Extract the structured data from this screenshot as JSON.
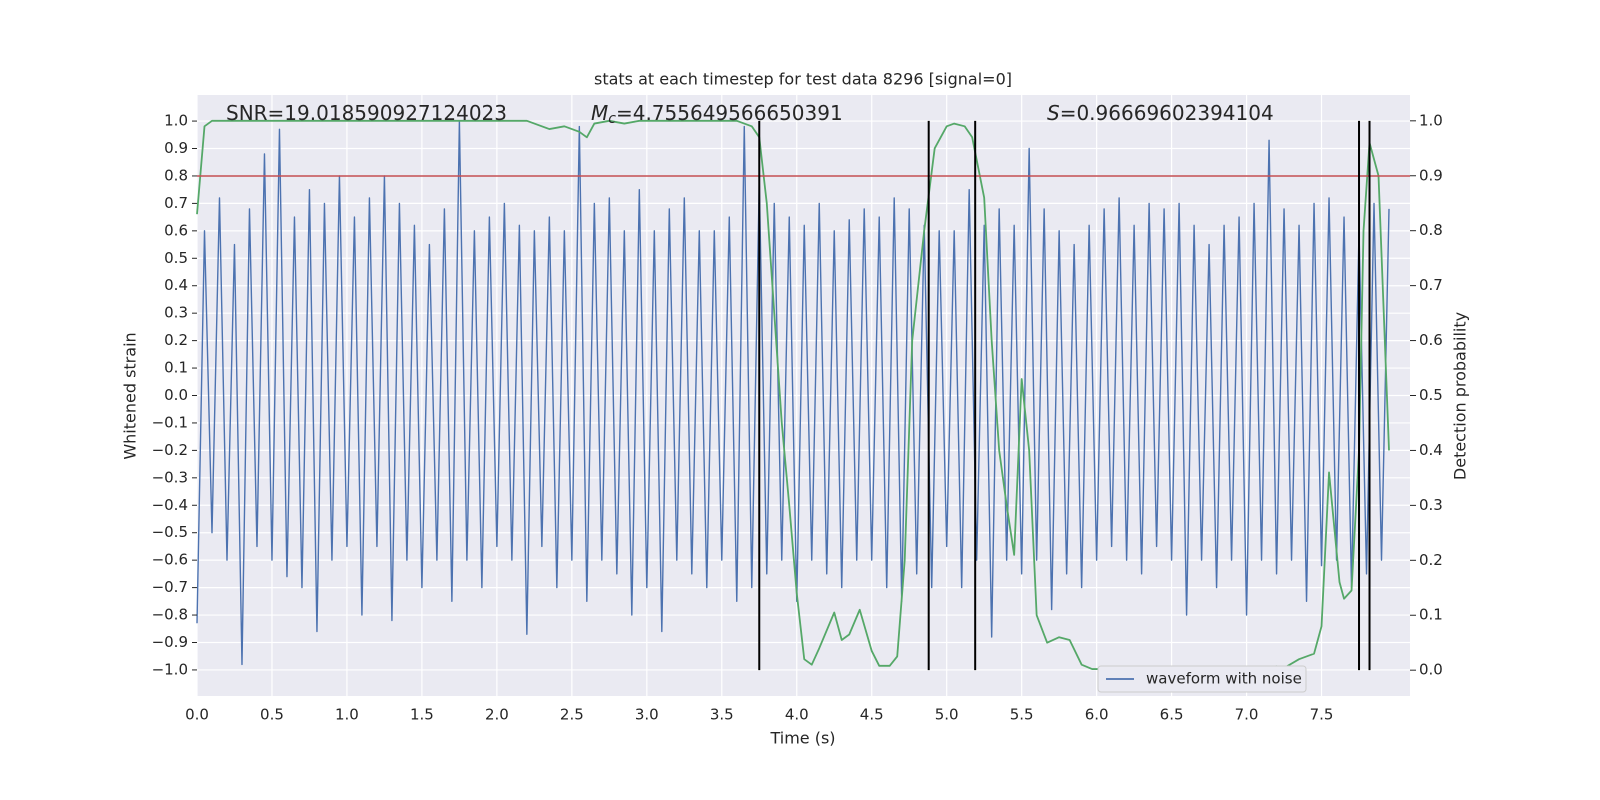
{
  "chart_data": {
    "type": "line",
    "title": "stats at each timestep for test data 8296 [signal=0]",
    "xlabel": "Time (s)",
    "ylabel": "Whitened strain",
    "y2label": "Detection probability",
    "annotations": [
      {
        "text": "SNR=19.018590927124023"
      },
      {
        "symbol": "M",
        "subscript": "c",
        "text": "=4.755649566650391"
      },
      {
        "symbol": "S",
        "text": "=0.96669602394104"
      }
    ],
    "xlim": [
      0,
      8.09
    ],
    "ylim": [
      -1.095,
      1.095
    ],
    "y2lim": [
      -0.047,
      1.047
    ],
    "xticks": [
      {
        "value": 0,
        "label": "0.0"
      },
      0.5,
      {
        "value": 1,
        "label": "1.0"
      },
      1.5,
      {
        "value": 2,
        "label": "2.0"
      },
      2.5,
      {
        "value": 3,
        "label": "3.0"
      },
      3.5,
      {
        "value": 4,
        "label": "4.0"
      },
      4.5,
      {
        "value": 5,
        "label": "5.0"
      },
      5.5,
      {
        "value": 6,
        "label": "6.0"
      },
      6.5,
      {
        "value": 7,
        "label": "7.0"
      },
      7.5
    ],
    "yticks": [
      {
        "value": -1,
        "label": "−1.0"
      },
      {
        "value": -0.9,
        "label": "−0.9"
      },
      {
        "value": -0.8,
        "label": "−0.8"
      },
      {
        "value": -0.7,
        "label": "−0.7"
      },
      {
        "value": -0.6,
        "label": "−0.6"
      },
      {
        "value": -0.5,
        "label": "−0.5"
      },
      {
        "value": -0.4,
        "label": "−0.4"
      },
      {
        "value": -0.3,
        "label": "−0.3"
      },
      {
        "value": -0.2,
        "label": "−0.2"
      },
      {
        "value": -0.1,
        "label": "−0.1"
      },
      {
        "value": 0,
        "label": "0.0"
      },
      0.1,
      0.2,
      0.3,
      0.4,
      0.5,
      0.6,
      0.7,
      0.8,
      0.9,
      {
        "value": 1,
        "label": "1.0"
      }
    ],
    "y2ticks": [
      {
        "value": 0,
        "label": "0.0"
      },
      0.1,
      0.2,
      0.3,
      0.4,
      0.5,
      0.6,
      0.7,
      0.8,
      0.9,
      {
        "value": 1,
        "label": "1.0"
      }
    ],
    "grid": true,
    "legend": "lower right",
    "series": [
      {
        "name": "waveform with noise",
        "color": "#4c72b0",
        "x": [
          0,
          0.05,
          0.1,
          0.15,
          0.2,
          0.25,
          0.3,
          0.35,
          0.4,
          0.45,
          0.5,
          0.55,
          0.6,
          0.65,
          0.7,
          0.75,
          0.8,
          0.85,
          0.9,
          0.95,
          1.0,
          1.05,
          1.1,
          1.15,
          1.2,
          1.25,
          1.3,
          1.35,
          1.4,
          1.45,
          1.5,
          1.55,
          1.6,
          1.65,
          1.7,
          1.75,
          1.8,
          1.85,
          1.9,
          1.95,
          2.0,
          2.05,
          2.1,
          2.15,
          2.2,
          2.25,
          2.3,
          2.35,
          2.4,
          2.45,
          2.5,
          2.55,
          2.6,
          2.65,
          2.7,
          2.75,
          2.8,
          2.85,
          2.9,
          2.95,
          3.0,
          3.05,
          3.1,
          3.15,
          3.2,
          3.25,
          3.3,
          3.35,
          3.4,
          3.45,
          3.5,
          3.55,
          3.6,
          3.65,
          3.7,
          3.75,
          3.8,
          3.85,
          3.9,
          3.95,
          4.0,
          4.05,
          4.1,
          4.15,
          4.2,
          4.25,
          4.3,
          4.35,
          4.4,
          4.45,
          4.5,
          4.55,
          4.6,
          4.65,
          4.7,
          4.75,
          4.8,
          4.85,
          4.9,
          4.95,
          5.0,
          5.05,
          5.1,
          5.15,
          5.2,
          5.25,
          5.3,
          5.35,
          5.4,
          5.45,
          5.5,
          5.55,
          5.6,
          5.65,
          5.7,
          5.75,
          5.8,
          5.85,
          5.9,
          5.95,
          6.0,
          6.05,
          6.1,
          6.15,
          6.2,
          6.25,
          6.3,
          6.35,
          6.4,
          6.45,
          6.5,
          6.55,
          6.6,
          6.65,
          6.7,
          6.75,
          6.8,
          6.85,
          6.9,
          6.95,
          7.0,
          7.05,
          7.1,
          7.15,
          7.2,
          7.25,
          7.3,
          7.35,
          7.4,
          7.45,
          7.5,
          7.55,
          7.6,
          7.65,
          7.7,
          7.75,
          7.8,
          7.85,
          7.9,
          7.95
        ],
        "values": [
          -0.83,
          0.6,
          -0.5,
          0.72,
          -0.6,
          0.55,
          -0.98,
          0.68,
          -0.55,
          0.88,
          -0.6,
          0.97,
          -0.66,
          0.65,
          -0.7,
          0.75,
          -0.86,
          0.7,
          -0.6,
          0.8,
          -0.55,
          0.65,
          -0.8,
          0.72,
          -0.55,
          0.8,
          -0.82,
          0.7,
          -0.6,
          0.62,
          -0.7,
          0.55,
          -0.6,
          0.68,
          -0.75,
          1.0,
          -0.6,
          0.6,
          -0.7,
          0.65,
          -0.55,
          0.7,
          -0.6,
          0.62,
          -0.87,
          0.6,
          -0.55,
          0.65,
          -0.7,
          0.6,
          -0.6,
          0.98,
          -0.75,
          0.7,
          -0.6,
          0.72,
          -0.65,
          0.6,
          -0.8,
          0.75,
          -0.7,
          0.6,
          -0.86,
          0.68,
          -0.6,
          0.72,
          -0.65,
          0.6,
          -0.7,
          0.6,
          -0.6,
          0.65,
          -0.75,
          0.98,
          -0.7,
          0.78,
          -0.65,
          0.7,
          -0.6,
          0.65,
          -0.75,
          0.62,
          -0.6,
          0.7,
          -0.65,
          0.6,
          -0.7,
          0.64,
          -0.6,
          0.68,
          -0.6,
          0.65,
          -0.7,
          0.72,
          -0.75,
          0.68,
          -0.65,
          0.62,
          -0.7,
          0.6,
          -0.55,
          0.6,
          -0.7,
          0.75,
          -0.6,
          0.62,
          -0.88,
          0.68,
          -0.6,
          0.62,
          -0.65,
          0.9,
          -0.6,
          0.68,
          -0.78,
          0.6,
          -0.65,
          0.55,
          -0.7,
          0.62,
          -0.6,
          0.68,
          -0.55,
          0.72,
          -0.6,
          0.62,
          -0.65,
          0.7,
          -0.55,
          0.68,
          -0.6,
          0.7,
          -0.8,
          0.62,
          -0.6,
          0.55,
          -0.7,
          0.62,
          -0.6,
          0.65,
          -0.8,
          0.7,
          -0.6,
          0.93,
          -0.65,
          0.68,
          -0.6,
          0.62,
          -0.75,
          0.7,
          -0.62,
          0.72,
          -0.6,
          0.65,
          -0.7,
          0.6,
          -0.65,
          0.7,
          -0.6,
          0.68
        ]
      },
      {
        "color": "#55a868",
        "axis": "y2",
        "x": [
          0,
          0.05,
          0.1,
          0.2,
          0.4,
          0.6,
          0.8,
          1.0,
          1.2,
          1.4,
          1.6,
          1.8,
          2.0,
          2.1,
          2.2,
          2.25,
          2.35,
          2.45,
          2.55,
          2.6,
          2.65,
          2.75,
          2.85,
          2.95,
          3.1,
          3.3,
          3.5,
          3.6,
          3.7,
          3.75,
          3.8,
          3.85,
          3.9,
          3.95,
          4.0,
          4.05,
          4.1,
          4.15,
          4.25,
          4.3,
          4.35,
          4.42,
          4.5,
          4.55,
          4.62,
          4.67,
          4.72,
          4.77,
          4.85,
          4.92,
          5.0,
          5.05,
          5.12,
          5.17,
          5.25,
          5.3,
          5.35,
          5.4,
          5.45,
          5.5,
          5.55,
          5.6,
          5.67,
          5.75,
          5.82,
          5.9,
          5.97,
          6.1,
          6.5,
          6.7,
          6.85,
          6.95,
          7.05,
          7.2,
          7.25,
          7.35,
          7.45,
          7.5,
          7.55,
          7.62,
          7.65,
          7.7,
          7.75,
          7.78,
          7.82,
          7.88,
          7.95
        ],
        "values": [
          0.83,
          0.99,
          1.0,
          1.0,
          1.0,
          1.0,
          1.0,
          1.0,
          1.0,
          1.0,
          1.0,
          1.0,
          1.0,
          1.0,
          1.0,
          0.995,
          0.985,
          0.99,
          0.98,
          0.97,
          0.995,
          1.0,
          0.995,
          1.0,
          1.0,
          1.0,
          1.0,
          1.0,
          0.99,
          0.97,
          0.85,
          0.65,
          0.45,
          0.3,
          0.14,
          0.02,
          0.01,
          0.04,
          0.105,
          0.055,
          0.065,
          0.11,
          0.035,
          0.008,
          0.008,
          0.025,
          0.2,
          0.6,
          0.8,
          0.95,
          0.99,
          0.995,
          0.99,
          0.97,
          0.86,
          0.6,
          0.4,
          0.3,
          0.21,
          0.53,
          0.4,
          0.1,
          0.05,
          0.06,
          0.055,
          0.01,
          0.002,
          0.002,
          0.001,
          0.001,
          0.003,
          0.004,
          0.002,
          0.007,
          0.004,
          0.02,
          0.03,
          0.08,
          0.36,
          0.16,
          0.13,
          0.145,
          0.4,
          0.8,
          0.96,
          0.9,
          0.4
        ]
      }
    ],
    "hlines": [
      {
        "value": 0.8,
        "color": "#c44e52"
      }
    ],
    "vlines": {
      "values": [
        3.75,
        4.88,
        5.19,
        7.75,
        7.82
      ],
      "color": "#000000",
      "axis": "y2",
      "range": [
        0,
        1
      ]
    }
  }
}
